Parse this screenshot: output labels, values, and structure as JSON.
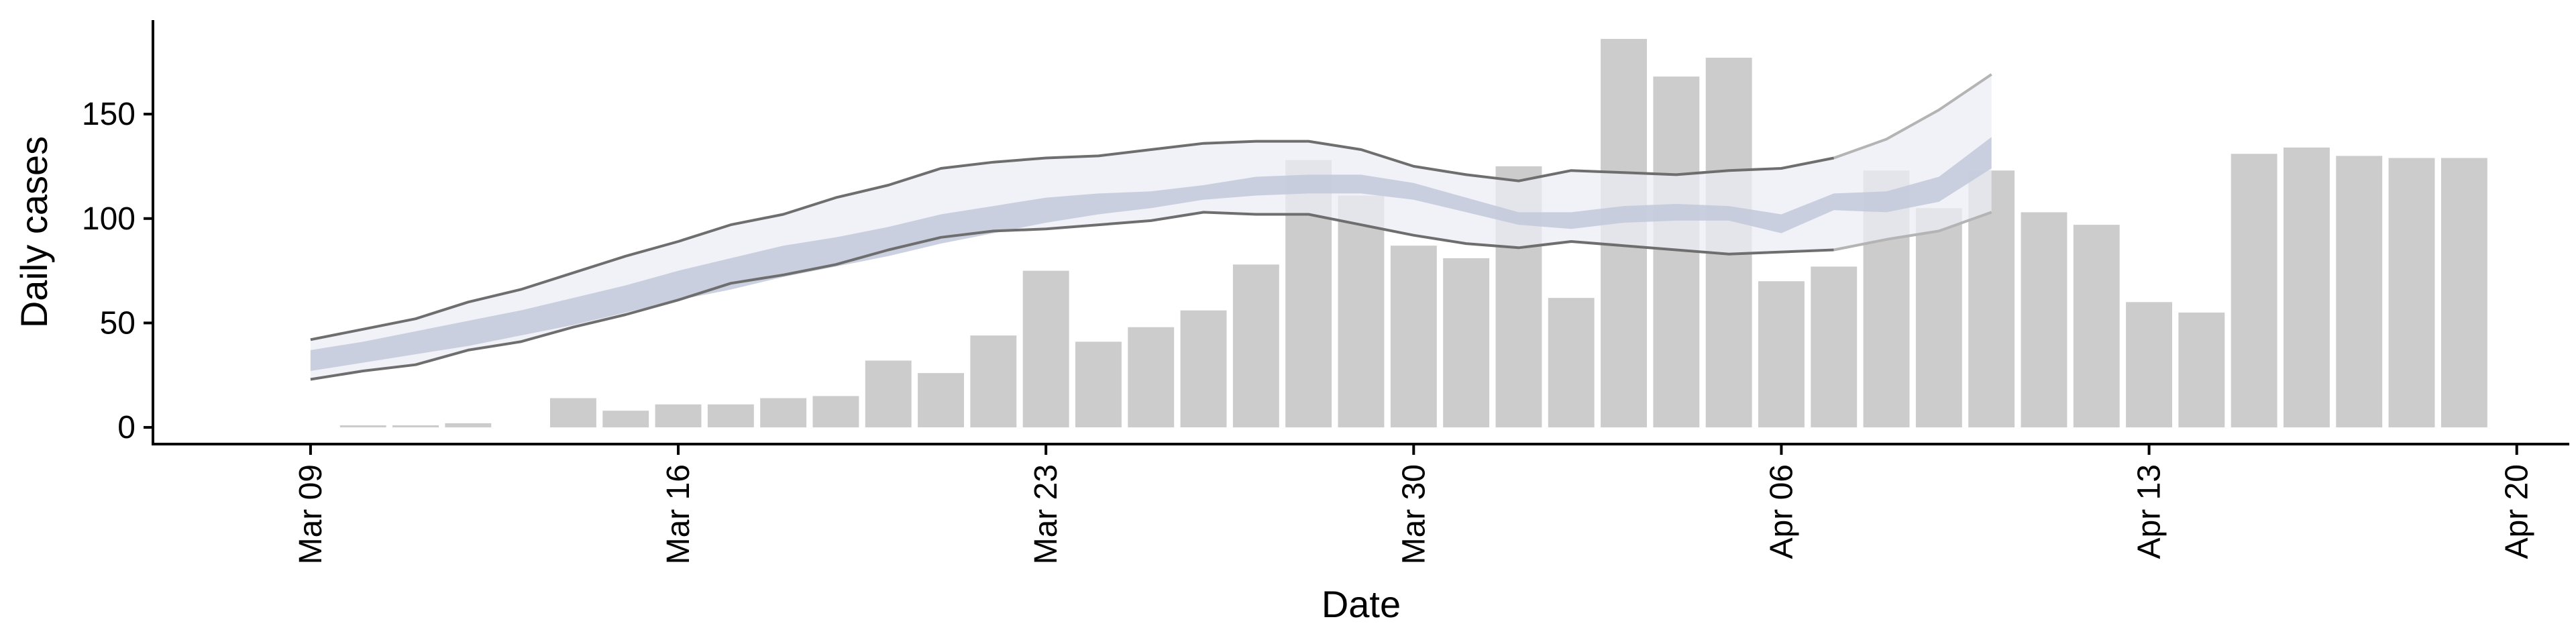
{
  "chart_data": {
    "type": "bar",
    "xlabel": "Date",
    "ylabel": "Daily cases",
    "ylim": [
      -8,
      195
    ],
    "yticks": [
      0,
      50,
      100,
      150
    ],
    "xticks": [
      "2020-03-09",
      "2020-03-16",
      "2020-03-23",
      "2020-03-30",
      "2020-04-06",
      "2020-04-13",
      "2020-04-20"
    ],
    "xtick_labels": [
      "Mar 09",
      "Mar 16",
      "Mar 23",
      "Mar 30",
      "Apr 06",
      "Apr 13",
      "Apr 20"
    ],
    "xlim": [
      "2020-03-06",
      "2020-04-21"
    ],
    "grid": false,
    "legend": "none",
    "bars": {
      "color": "#cccccc",
      "x": [
        "2020-03-10",
        "2020-03-11",
        "2020-03-12",
        "2020-03-13",
        "2020-03-14",
        "2020-03-15",
        "2020-03-16",
        "2020-03-17",
        "2020-03-18",
        "2020-03-19",
        "2020-03-20",
        "2020-03-21",
        "2020-03-22",
        "2020-03-23",
        "2020-03-24",
        "2020-03-25",
        "2020-03-26",
        "2020-03-27",
        "2020-03-28",
        "2020-03-29",
        "2020-03-30",
        "2020-03-31",
        "2020-04-01",
        "2020-04-02",
        "2020-04-03",
        "2020-04-04",
        "2020-04-05",
        "2020-04-06",
        "2020-04-07",
        "2020-04-08",
        "2020-04-09",
        "2020-04-10",
        "2020-04-11",
        "2020-04-12",
        "2020-04-13",
        "2020-04-14",
        "2020-04-15",
        "2020-04-16",
        "2020-04-17",
        "2020-04-18",
        "2020-04-19"
      ],
      "values": [
        1,
        1,
        2,
        0,
        14,
        8,
        11,
        11,
        14,
        15,
        32,
        26,
        44,
        75,
        41,
        48,
        56,
        78,
        128,
        111,
        87,
        81,
        125,
        62,
        186,
        168,
        177,
        70,
        77,
        123,
        105,
        123,
        103,
        97,
        60,
        55,
        131,
        134,
        130,
        129,
        129
      ]
    },
    "forecast": {
      "x": [
        "2020-03-09",
        "2020-03-10",
        "2020-03-11",
        "2020-03-12",
        "2020-03-13",
        "2020-03-14",
        "2020-03-15",
        "2020-03-16",
        "2020-03-17",
        "2020-03-18",
        "2020-03-19",
        "2020-03-20",
        "2020-03-21",
        "2020-03-22",
        "2020-03-23",
        "2020-03-24",
        "2020-03-25",
        "2020-03-26",
        "2020-03-27",
        "2020-03-28",
        "2020-03-29",
        "2020-03-30",
        "2020-03-31",
        "2020-04-01",
        "2020-04-02",
        "2020-04-03",
        "2020-04-04",
        "2020-04-05",
        "2020-04-06",
        "2020-04-07",
        "2020-04-08",
        "2020-04-09",
        "2020-04-10"
      ],
      "inner_band_color": "#c3c9dc",
      "outer_band_color": "#ecedf4",
      "lines_color": "#6e6e6e",
      "faded_lines_color": "#b4b4b4",
      "faded_from": "2020-04-07",
      "inner_lower": [
        27,
        31,
        35,
        39,
        44,
        49,
        55,
        61,
        66,
        72,
        77,
        82,
        88,
        93,
        98,
        102,
        105,
        109,
        111,
        112,
        112,
        109,
        103,
        97,
        95,
        98,
        99,
        99,
        93,
        104,
        103,
        108,
        124
      ],
      "inner_upper": [
        37,
        41,
        46,
        51,
        56,
        62,
        68,
        75,
        81,
        87,
        91,
        96,
        102,
        106,
        110,
        112,
        113,
        116,
        120,
        121,
        121,
        117,
        110,
        103,
        103,
        106,
        107,
        106,
        102,
        112,
        113,
        120,
        139
      ],
      "outer_lower": [
        23,
        27,
        30,
        37,
        41,
        48,
        54,
        61,
        69,
        73,
        78,
        85,
        91,
        94,
        95,
        97,
        99,
        103,
        102,
        102,
        97,
        92,
        88,
        86,
        89,
        87,
        85,
        83,
        84,
        85,
        90,
        94,
        103
      ],
      "outer_upper": [
        42,
        47,
        52,
        60,
        66,
        74,
        82,
        89,
        97,
        102,
        110,
        116,
        124,
        127,
        129,
        130,
        133,
        136,
        137,
        137,
        133,
        125,
        121,
        118,
        123,
        122,
        121,
        123,
        124,
        129,
        138,
        152,
        169
      ]
    }
  }
}
